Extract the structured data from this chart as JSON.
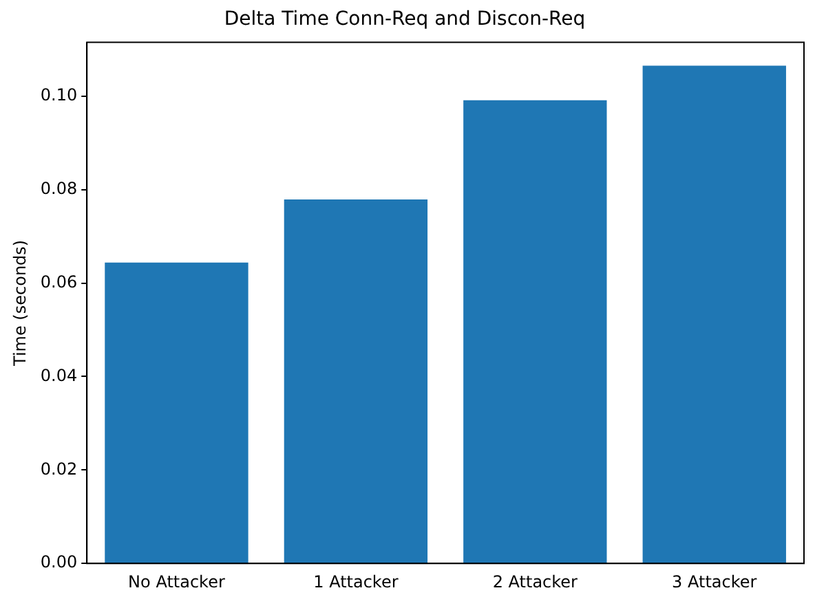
{
  "chart_data": {
    "type": "bar",
    "title": "Delta Time Conn-Req and Discon-Req",
    "ylabel": "Time (seconds)",
    "categories": [
      "No Attacker",
      "1 Attacker",
      "2 Attacker",
      "3 Attacker"
    ],
    "values": [
      0.0644,
      0.0779,
      0.0991,
      0.1065
    ],
    "color": "#1f77b4",
    "ylim": [
      0,
      0.1115
    ],
    "yticks": [
      {
        "value": 0,
        "label": "0.00"
      },
      {
        "value": 0.02,
        "label": "0.02"
      },
      {
        "value": 0.04,
        "label": "0.04"
      },
      {
        "value": 0.06,
        "label": "0.06"
      },
      {
        "value": 0.08,
        "label": "0.08"
      },
      {
        "value": 0.1,
        "label": "0.10"
      }
    ],
    "grid": false,
    "legend": false
  }
}
